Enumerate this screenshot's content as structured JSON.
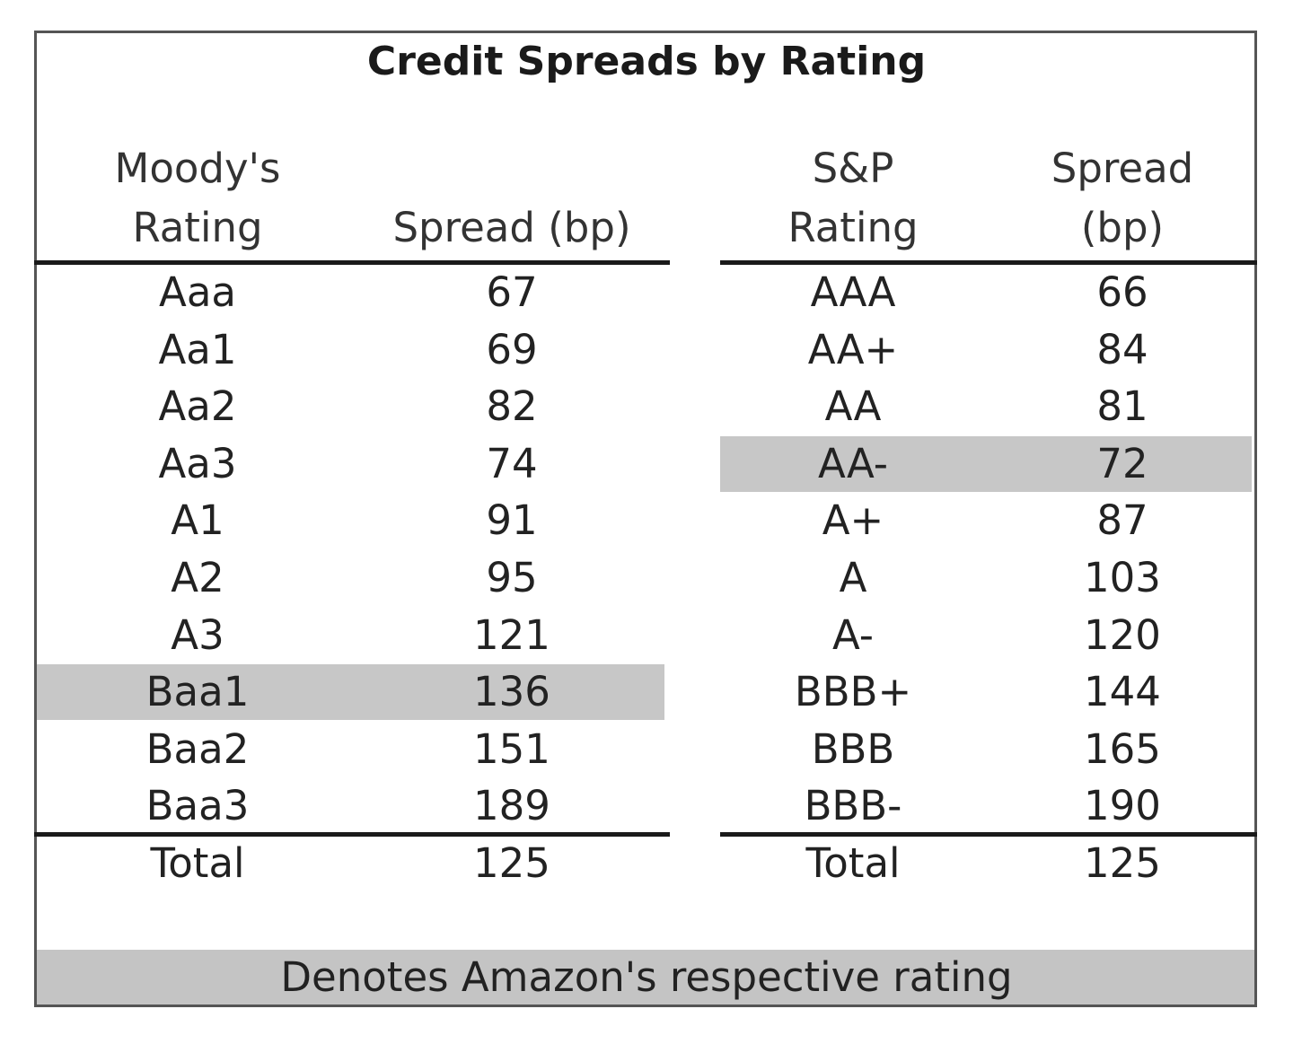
{
  "title": "Credit Spreads by Rating",
  "moodys": {
    "header_rating_line1": "Moody's",
    "header_rating_line2": "Rating",
    "header_spread": "Spread (bp)",
    "rows": [
      {
        "rating": "Aaa",
        "spread": "67"
      },
      {
        "rating": "Aa1",
        "spread": "69"
      },
      {
        "rating": "Aa2",
        "spread": "82"
      },
      {
        "rating": "Aa3",
        "spread": "74"
      },
      {
        "rating": "A1",
        "spread": "91"
      },
      {
        "rating": "A2",
        "spread": "95"
      },
      {
        "rating": "A3",
        "spread": "121"
      },
      {
        "rating": "Baa1",
        "spread": "136"
      },
      {
        "rating": "Baa2",
        "spread": "151"
      },
      {
        "rating": "Baa3",
        "spread": "189"
      }
    ],
    "highlight_index": 7,
    "total_label": "Total",
    "total_value": "125"
  },
  "sp": {
    "header_rating_line1": "S&P",
    "header_rating_line2": "Rating",
    "header_spread_line1": "Spread",
    "header_spread_line2": "(bp)",
    "rows": [
      {
        "rating": "AAA",
        "spread": "66"
      },
      {
        "rating": "AA+",
        "spread": "84"
      },
      {
        "rating": "AA",
        "spread": "81"
      },
      {
        "rating": "AA-",
        "spread": "72"
      },
      {
        "rating": "A+",
        "spread": "87"
      },
      {
        "rating": "A",
        "spread": "103"
      },
      {
        "rating": "A-",
        "spread": "120"
      },
      {
        "rating": "BBB+",
        "spread": "144"
      },
      {
        "rating": "BBB",
        "spread": "165"
      },
      {
        "rating": "BBB-",
        "spread": "190"
      }
    ],
    "highlight_index": 3,
    "total_label": "Total",
    "total_value": "125"
  },
  "legend": "Denotes Amazon's respective rating",
  "colors": {
    "highlight": "#c7c7c7",
    "border": "#555555",
    "rule": "#1a1a1a"
  }
}
